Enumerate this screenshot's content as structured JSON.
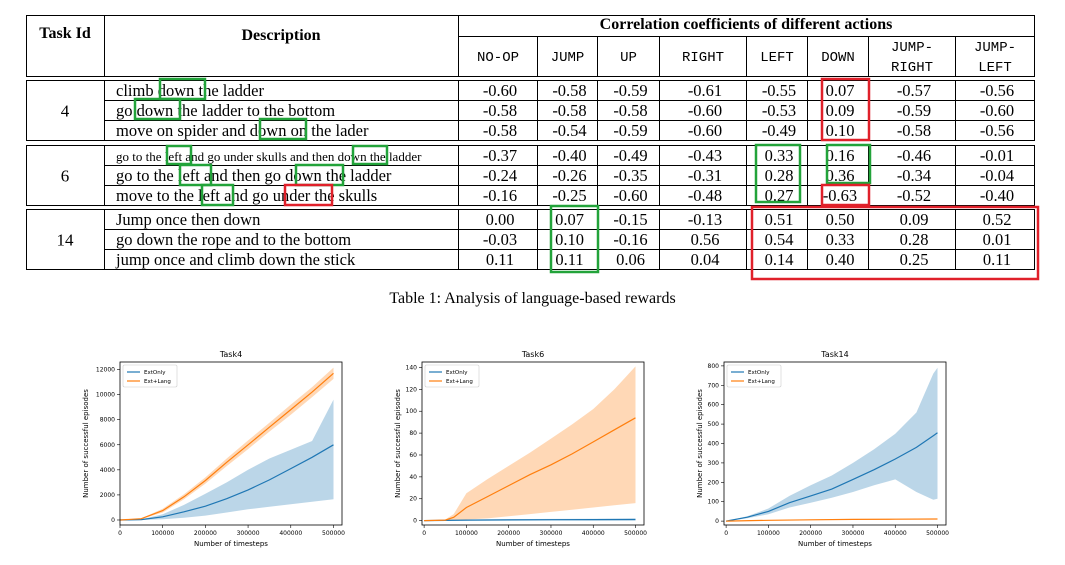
{
  "table": {
    "header": {
      "task_id": "Task Id",
      "description": "Description",
      "corr_title": "Correlation coefficients of different actions",
      "actions": [
        {
          "l1": "NO-OP",
          "l2": ""
        },
        {
          "l1": "JUMP",
          "l2": ""
        },
        {
          "l1": "UP",
          "l2": ""
        },
        {
          "l1": "RIGHT",
          "l2": ""
        },
        {
          "l1": "LEFT",
          "l2": ""
        },
        {
          "l1": "DOWN",
          "l2": ""
        },
        {
          "l1": "JUMP-",
          "l2": "RIGHT"
        },
        {
          "l1": "JUMP-",
          "l2": "LEFT"
        }
      ]
    },
    "groups": [
      {
        "task": "4",
        "rows": [
          {
            "desc": "climb down the ladder",
            "values": [
              "-0.60",
              "-0.58",
              "-0.59",
              "-0.61",
              "-0.55",
              "0.07",
              "-0.57",
              "-0.56"
            ]
          },
          {
            "desc": "go down the ladder to the bottom",
            "values": [
              "-0.58",
              "-0.58",
              "-0.58",
              "-0.60",
              "-0.53",
              "0.09",
              "-0.59",
              "-0.60"
            ]
          },
          {
            "desc": "move on spider and down on the lader",
            "values": [
              "-0.58",
              "-0.54",
              "-0.59",
              "-0.60",
              "-0.49",
              "0.10",
              "-0.58",
              "-0.56"
            ]
          }
        ]
      },
      {
        "task": "6",
        "rows": [
          {
            "desc": "go to the left and go under skulls and then down the ladder",
            "values": [
              "-0.37",
              "-0.40",
              "-0.49",
              "-0.43",
              "0.33",
              "0.16",
              "-0.46",
              "-0.01"
            ]
          },
          {
            "desc": "go to the left and then go down the ladder",
            "values": [
              "-0.24",
              "-0.26",
              "-0.35",
              "-0.31",
              "0.28",
              "0.36",
              "-0.34",
              "-0.04"
            ]
          },
          {
            "desc": "move to the left and go under the skulls",
            "values": [
              "-0.16",
              "-0.25",
              "-0.60",
              "-0.48",
              "0.27",
              "-0.63",
              "-0.52",
              "-0.40"
            ]
          }
        ]
      },
      {
        "task": "14",
        "rows": [
          {
            "desc": "Jump once then down",
            "values": [
              "0.00",
              "0.07",
              "-0.15",
              "-0.13",
              "0.51",
              "0.50",
              "0.09",
              "0.52"
            ]
          },
          {
            "desc": "go down the rope and to the bottom",
            "values": [
              "-0.03",
              "0.10",
              "-0.16",
              "0.56",
              "0.54",
              "0.33",
              "0.28",
              "0.01"
            ]
          },
          {
            "desc": "jump once and climb down the stick",
            "values": [
              "0.11",
              "0.11",
              "0.06",
              "0.04",
              "0.14",
              "0.40",
              "0.25",
              "0.11"
            ]
          }
        ]
      }
    ],
    "caption": "Table 1: Analysis of language-based rewards"
  },
  "colors": {
    "green_box": "#22a33a",
    "red_box": "#e0202a",
    "ext_only": "#1f77b4",
    "ext_lang": "#ff7f0e"
  },
  "chart_data": [
    {
      "type": "line",
      "title": "Task4",
      "xlabel": "Number of timesteps",
      "ylabel": "Number of successful episodes",
      "xlim": [
        0,
        520000
      ],
      "ylim": [
        -400,
        12600
      ],
      "xticks": [
        0,
        100000,
        200000,
        300000,
        400000,
        500000
      ],
      "yticks": [
        0,
        2000,
        4000,
        6000,
        8000,
        10000,
        12000
      ],
      "legend": [
        "ExtOnly",
        "Ext+Lang"
      ],
      "legend_position": "top-left",
      "series": [
        {
          "name": "ExtOnly",
          "color": "#1f77b4",
          "x": [
            0,
            50000,
            100000,
            150000,
            200000,
            250000,
            300000,
            350000,
            400000,
            450000,
            500000
          ],
          "y": [
            0,
            30,
            250,
            650,
            1100,
            1700,
            2400,
            3200,
            4100,
            5000,
            6000
          ],
          "lower": [
            0,
            0,
            60,
            180,
            350,
            600,
            850,
            1050,
            1250,
            1450,
            1650
          ],
          "upper": [
            0,
            60,
            450,
            1200,
            2100,
            3000,
            4000,
            4900,
            5600,
            6300,
            9600
          ]
        },
        {
          "name": "Ext+Lang",
          "color": "#ff7f0e",
          "x": [
            0,
            50000,
            100000,
            150000,
            200000,
            250000,
            300000,
            350000,
            400000,
            450000,
            500000
          ],
          "y": [
            0,
            100,
            750,
            1850,
            3150,
            4600,
            6000,
            7400,
            8800,
            10200,
            11700
          ],
          "lower": [
            0,
            70,
            600,
            1650,
            2900,
            4300,
            5650,
            7050,
            8400,
            9800,
            11250
          ],
          "upper": [
            0,
            130,
            900,
            2050,
            3400,
            4900,
            6350,
            7750,
            9200,
            10600,
            12150
          ]
        }
      ]
    },
    {
      "type": "line",
      "title": "Task6",
      "xlabel": "Number of timesteps",
      "ylabel": "Number of successful episodes",
      "xlim": [
        -5000,
        520000
      ],
      "ylim": [
        -4,
        145
      ],
      "xticks": [
        0,
        100000,
        200000,
        300000,
        400000,
        500000
      ],
      "yticks": [
        0,
        20,
        40,
        60,
        80,
        100,
        120,
        140
      ],
      "legend": [
        "ExtOnly",
        "Ext+Lang"
      ],
      "legend_position": "top-left",
      "series": [
        {
          "name": "ExtOnly",
          "color": "#1f77b4",
          "x": [
            0,
            100000,
            200000,
            300000,
            400000,
            500000
          ],
          "y": [
            0,
            0.5,
            0.7,
            0.8,
            0.9,
            1
          ],
          "lower": [
            0,
            0,
            0,
            0,
            0,
            0
          ],
          "upper": [
            0,
            1,
            1.4,
            1.6,
            1.8,
            2
          ]
        },
        {
          "name": "Ext+Lang",
          "color": "#ff7f0e",
          "x": [
            0,
            50000,
            70000,
            100000,
            150000,
            200000,
            250000,
            300000,
            350000,
            400000,
            450000,
            500000
          ],
          "y": [
            0,
            0.5,
            3,
            12,
            22,
            32,
            42,
            51,
            61,
            72,
            83,
            94
          ],
          "lower": [
            0,
            0,
            0.5,
            1,
            2,
            4,
            6,
            8,
            10,
            12,
            14,
            16
          ],
          "upper": [
            0,
            1,
            6,
            25,
            38,
            50,
            62,
            75,
            88,
            102,
            120,
            141
          ]
        }
      ]
    },
    {
      "type": "line",
      "title": "Task14",
      "xlabel": "Number of timesteps",
      "ylabel": "Number of successful episodes",
      "xlim": [
        -5000,
        520000
      ],
      "ylim": [
        -20,
        820
      ],
      "xticks": [
        0,
        100000,
        200000,
        300000,
        400000,
        500000
      ],
      "yticks": [
        0,
        100,
        200,
        300,
        400,
        500,
        600,
        700,
        800
      ],
      "legend": [
        "ExtOnly",
        "Ext+Lang"
      ],
      "legend_position": "top-left",
      "series": [
        {
          "name": "ExtOnly",
          "color": "#1f77b4",
          "x": [
            0,
            50000,
            100000,
            150000,
            200000,
            250000,
            300000,
            350000,
            400000,
            450000,
            490000,
            500000
          ],
          "y": [
            0,
            20,
            50,
            95,
            130,
            165,
            215,
            265,
            320,
            380,
            440,
            455
          ],
          "lower": [
            0,
            15,
            35,
            70,
            95,
            120,
            150,
            185,
            215,
            150,
            110,
            115
          ],
          "upper": [
            0,
            25,
            65,
            130,
            185,
            235,
            300,
            370,
            450,
            560,
            760,
            790
          ]
        },
        {
          "name": "Ext+Lang",
          "color": "#ff7f0e",
          "x": [
            0,
            100000,
            200000,
            300000,
            400000,
            500000
          ],
          "y": [
            0,
            4,
            7,
            9,
            10,
            11
          ],
          "lower": [
            0,
            3,
            5,
            7,
            8,
            9
          ],
          "upper": [
            0,
            5,
            9,
            11,
            12,
            13
          ]
        }
      ]
    }
  ]
}
